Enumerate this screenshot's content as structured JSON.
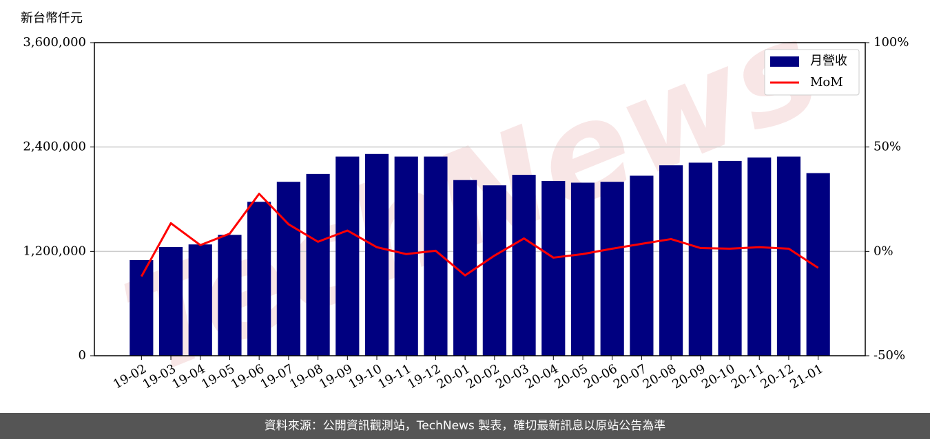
{
  "chart_data": {
    "type": "bar",
    "y_label": "新台幣仟元",
    "watermark": "TechNews",
    "footer": "資料來源：公開資訊觀測站，TechNews 製表，確切最新訊息以原站公告為準",
    "categories": [
      "19-02",
      "19-03",
      "19-04",
      "19-05",
      "19-06",
      "19-07",
      "19-08",
      "19-09",
      "19-10",
      "19-11",
      "19-12",
      "20-01",
      "20-02",
      "20-03",
      "20-04",
      "20-05",
      "20-06",
      "20-07",
      "20-08",
      "20-09",
      "20-10",
      "20-11",
      "20-12",
      "21-01"
    ],
    "series": [
      {
        "name": "月營收",
        "type": "bar",
        "color": "#000080",
        "values": [
          1100000,
          1250000,
          1280000,
          1390000,
          1770000,
          2000000,
          2090000,
          2290000,
          2320000,
          2290000,
          2290000,
          2020000,
          1960000,
          2080000,
          2010000,
          1990000,
          2000000,
          2070000,
          2190000,
          2220000,
          2240000,
          2280000,
          2290000,
          2100000
        ]
      },
      {
        "name": "MoM",
        "type": "line",
        "color": "#ff0000",
        "axis": "y2",
        "values": [
          -12,
          13.5,
          3,
          8.5,
          27.6,
          13,
          4.6,
          10,
          2,
          -1.3,
          0.3,
          -11.5,
          -2,
          6.2,
          -3,
          -1.3,
          1.3,
          3.6,
          5.9,
          1.6,
          1.3,
          2,
          1.3,
          -7.9
        ]
      }
    ],
    "ylim": [
      0,
      3600000
    ],
    "yticks": [
      0,
      {
        "value": 1200000,
        "label": "1,200,000"
      },
      {
        "value": 2400000,
        "label": "2,400,000"
      },
      {
        "value": 3600000,
        "label": "3,600,000"
      }
    ],
    "y2lim": [
      -50,
      100
    ],
    "y2ticks": [
      {
        "value": -50,
        "label": "-50%"
      },
      {
        "value": 0,
        "label": "0%"
      },
      {
        "value": 50,
        "label": "50%"
      },
      {
        "value": 100,
        "label": "100%"
      }
    ],
    "grid": true,
    "legend": "upper right"
  }
}
